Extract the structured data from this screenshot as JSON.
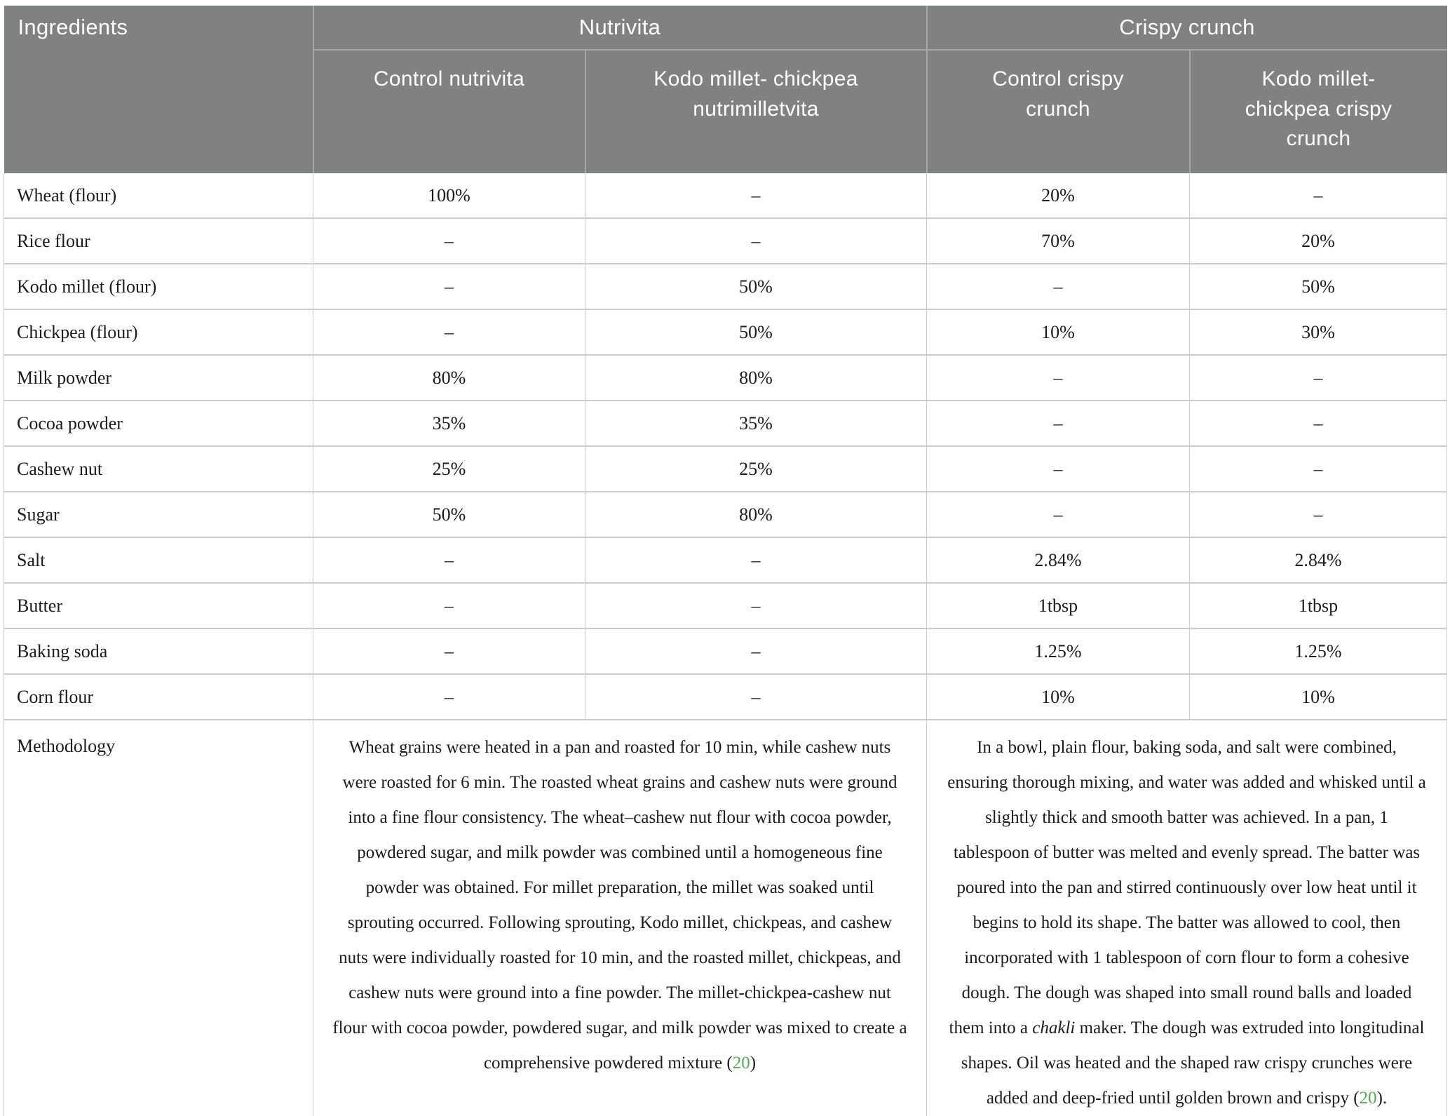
{
  "colors": {
    "header_bg": "#7f8281",
    "header_text": "#ffffff",
    "header_divider": "#a6a8a7",
    "body_border": "#cbcdcc",
    "text": "#1b1b1b",
    "citation_green": "#52ae52"
  },
  "table": {
    "corner_header": "Ingredients",
    "groups": [
      {
        "label": "Nutrivita",
        "columns": [
          "Control nutrivita",
          "Kodo millet- chickpea\nnutrimilletvita"
        ]
      },
      {
        "label": "Crispy crunch",
        "columns": [
          "Control crispy\ncrunch",
          "Kodo millet-\nchickpea crispy\ncrunch"
        ]
      }
    ],
    "rows": [
      {
        "label": "Wheat (flour)",
        "values": [
          "100%",
          "–",
          "20%",
          "–"
        ]
      },
      {
        "label": "Rice flour",
        "values": [
          "–",
          "–",
          "70%",
          "20%"
        ]
      },
      {
        "label": "Kodo millet (flour)",
        "values": [
          "–",
          "50%",
          "–",
          "50%"
        ]
      },
      {
        "label": "Chickpea (flour)",
        "values": [
          "–",
          "50%",
          "10%",
          "30%"
        ]
      },
      {
        "label": "Milk powder",
        "values": [
          "80%",
          "80%",
          "–",
          "–"
        ]
      },
      {
        "label": "Cocoa powder",
        "values": [
          "35%",
          "35%",
          "–",
          "–"
        ]
      },
      {
        "label": "Cashew nut",
        "values": [
          "25%",
          "25%",
          "–",
          "–"
        ]
      },
      {
        "label": "Sugar",
        "values": [
          "50%",
          "80%",
          "–",
          "–"
        ]
      },
      {
        "label": "Salt",
        "values": [
          "–",
          "–",
          "2.84%",
          "2.84%"
        ]
      },
      {
        "label": "Butter",
        "values": [
          "–",
          "–",
          "1tbsp",
          "1tbsp"
        ]
      },
      {
        "label": "Baking soda",
        "values": [
          "–",
          "–",
          "1.25%",
          "1.25%"
        ]
      },
      {
        "label": "Corn flour",
        "values": [
          "–",
          "–",
          "10%",
          "10%"
        ]
      }
    ],
    "methodology": {
      "label": "Methodology",
      "nutrivita": [
        {
          "t": "Wheat grains were heated in a pan and roasted for 10 min, while cashew nuts were roasted for 6 min. The roasted wheat grains and cashew nuts were ground into a fine flour consistency. The wheat–cashew nut flour with cocoa powder, powdered sugar, and milk powder was combined until a homogeneous fine powder was obtained. For millet preparation, the millet was soaked until sprouting occurred. Following sprouting, Kodo millet, chickpeas, and cashew nuts were individually roasted for 10 min, and the roasted millet, chickpeas, and cashew nuts were ground into a fine powder. The millet-chickpea-cashew nut flour with cocoa powder, powdered sugar, and milk powder was mixed to create a comprehensive powdered mixture (",
          "s": "normal"
        },
        {
          "t": "20",
          "s": "cite"
        },
        {
          "t": ")",
          "s": "normal"
        }
      ],
      "crispy_crunch": [
        {
          "t": "In a bowl, plain flour, baking soda, and salt were combined, ensuring thorough mixing, and water was added and whisked until a slightly thick and smooth batter was achieved. In a pan, 1 tablespoon of butter was melted and evenly spread. The batter was poured into the pan and stirred continuously over low heat until it begins to hold its shape. The batter was allowed to cool, then incorporated with 1 tablespoon of corn flour to form a cohesive dough. The dough was shaped into small round balls and loaded them into a ",
          "s": "normal"
        },
        {
          "t": "chakli",
          "s": "italic"
        },
        {
          "t": " maker. The dough was extruded into longitudinal shapes. Oil was heated and the shaped raw crispy crunches were added and deep-fried until golden brown and crispy (",
          "s": "normal"
        },
        {
          "t": "20",
          "s": "cite"
        },
        {
          "t": ").",
          "s": "normal"
        }
      ]
    }
  }
}
